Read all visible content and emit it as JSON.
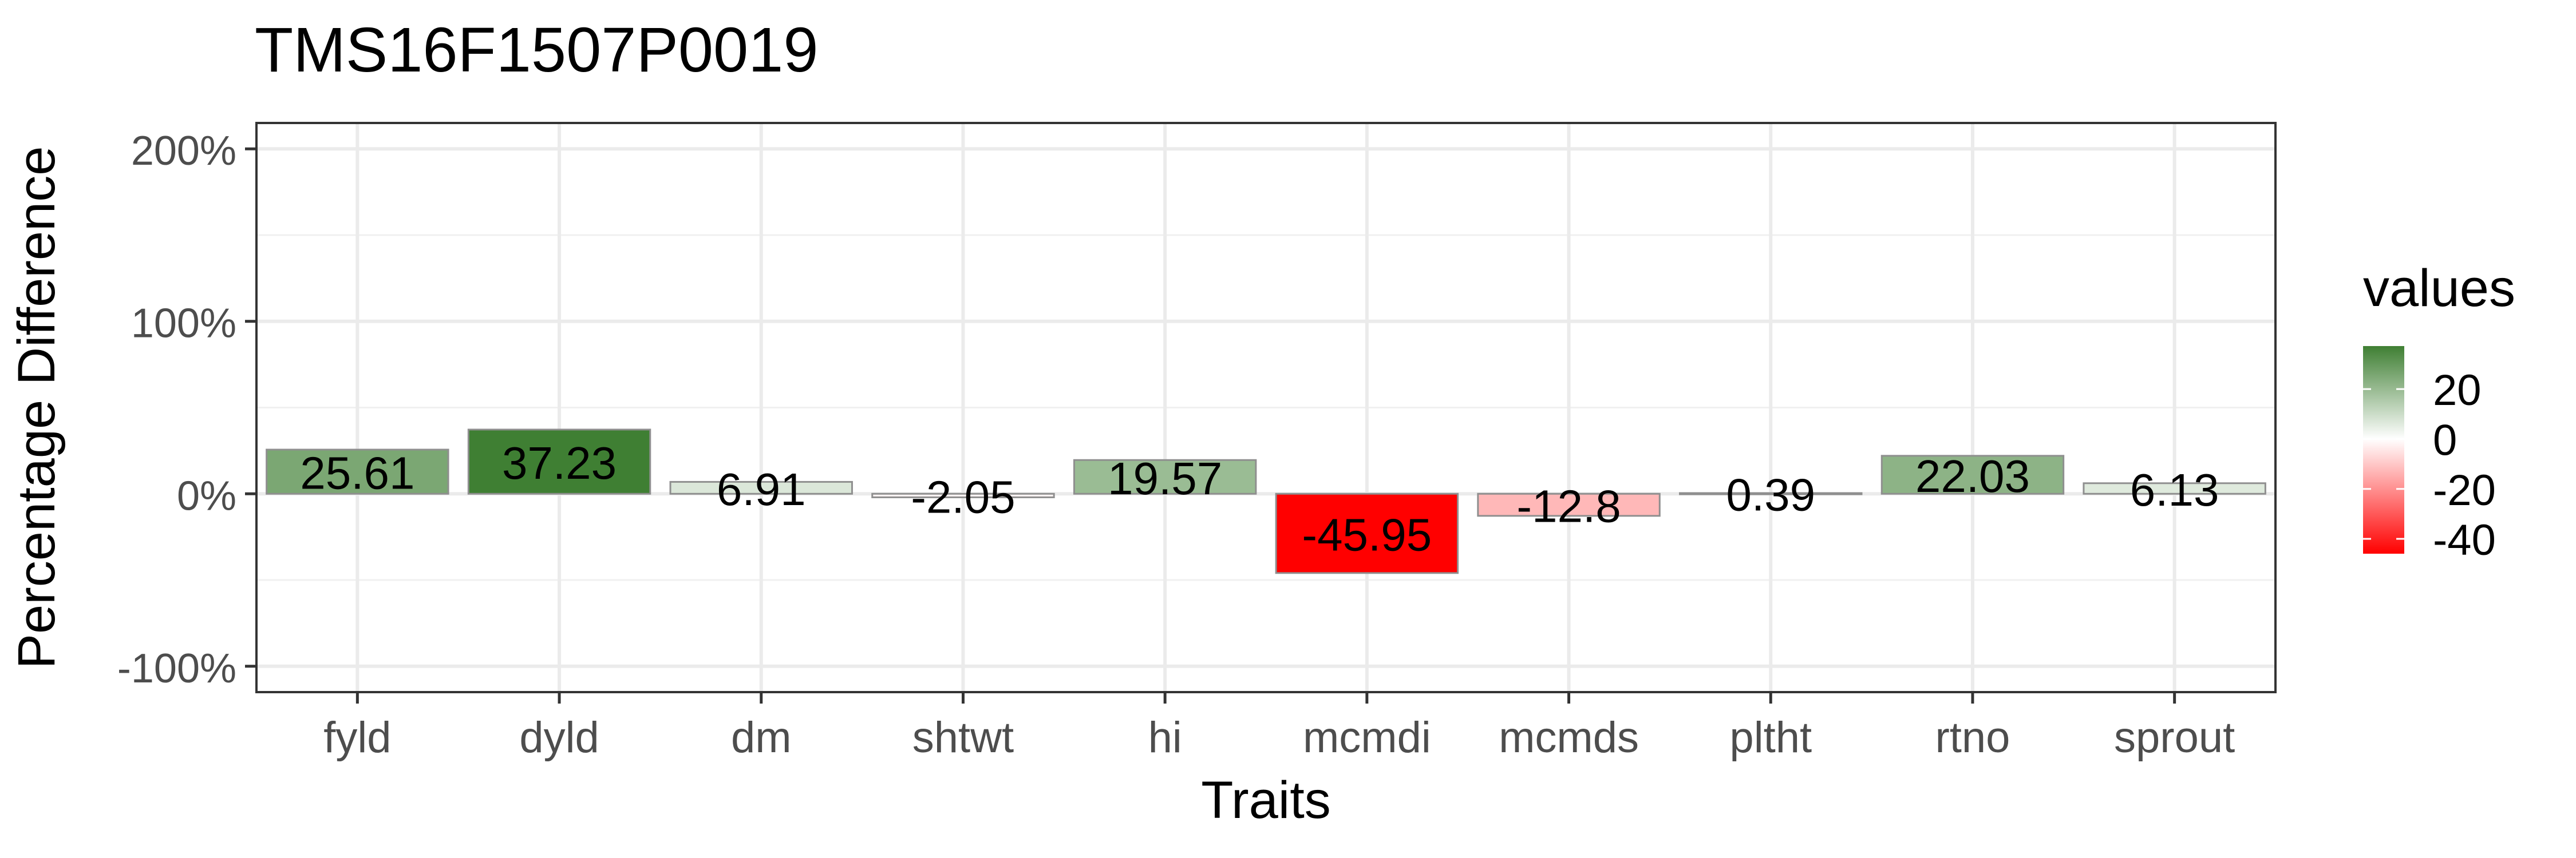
{
  "chart_data": {
    "type": "bar",
    "title": "TMS16F1507P0019",
    "xlabel": "Traits",
    "ylabel": "Percentage Difference",
    "categories": [
      "fyld",
      "dyld",
      "dm",
      "shtwt",
      "hi",
      "mcmdi",
      "mcmds",
      "pltht",
      "rtno",
      "sprout"
    ],
    "values": [
      25.61,
      37.23,
      6.91,
      -2.05,
      19.57,
      -45.95,
      -12.8,
      0.39,
      22.03,
      6.13
    ],
    "value_labels": [
      "25.61",
      "37.23",
      "6.91",
      "-2.05",
      "19.57",
      "-45.95",
      "-12.8",
      "0.39",
      "22.03",
      "6.13"
    ],
    "ylim": [
      -115,
      215
    ],
    "y_ticks": [
      -100,
      0,
      100,
      200
    ],
    "y_tick_labels": [
      "-100%",
      "0%",
      "100%",
      "200%"
    ],
    "grid": true,
    "legend": {
      "title": "values",
      "position": "right",
      "ticks": [
        20,
        0,
        -20,
        -40
      ],
      "tick_labels": [
        "20",
        "0",
        "-20",
        "-40"
      ],
      "range": [
        -45.95,
        37.23
      ],
      "colors": {
        "low": "#ff0000",
        "mid": "#ffffff",
        "high": "#3f7f33"
      }
    }
  }
}
